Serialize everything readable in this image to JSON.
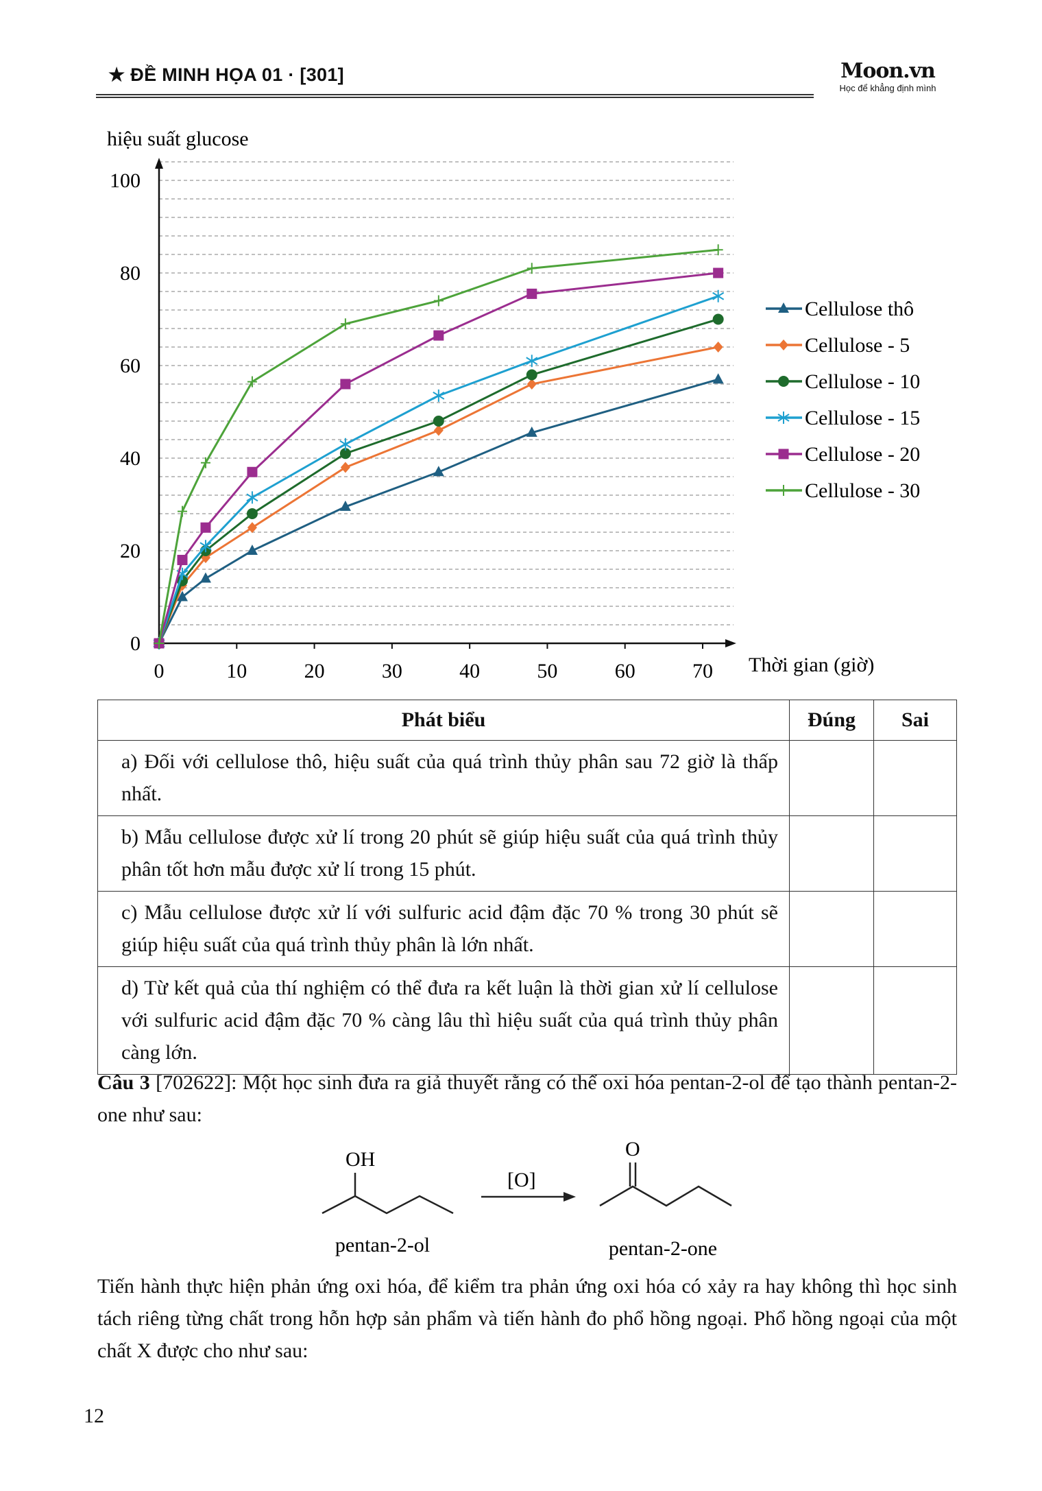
{
  "header": {
    "title": "★ ĐỀ MINH HỌA 01 · [301]",
    "logo_brand": "Moon.vn",
    "logo_tagline": "Học để khẳng định mình"
  },
  "chart_data": {
    "type": "line",
    "ylabel": "hiệu suất glucose",
    "xlabel": "Thời gian (giờ)",
    "xlim": [
      0,
      72
    ],
    "ylim": [
      0,
      104
    ],
    "x_ticks": [
      0,
      10,
      20,
      30,
      40,
      50,
      60,
      70
    ],
    "y_ticks": [
      0,
      20,
      40,
      60,
      80,
      100
    ],
    "grid": "horizontal dashed every 4",
    "legend_placement": "right",
    "x": [
      0,
      3,
      6,
      12,
      24,
      36,
      48,
      72
    ],
    "series": [
      {
        "name": "Cellulose thô",
        "color": "#1f5f82",
        "marker": "triangle",
        "values": [
          0,
          10,
          14,
          20,
          29.5,
          37,
          45.5,
          57
        ]
      },
      {
        "name": "Cellulose - 5",
        "color": "#ec7535",
        "marker": "diamond",
        "values": [
          0,
          12.5,
          18.5,
          25,
          38,
          46,
          56,
          64
        ]
      },
      {
        "name": "Cellulose - 10",
        "color": "#1e6b2c",
        "marker": "circle",
        "values": [
          0,
          13.5,
          20,
          28,
          41,
          48,
          58,
          70
        ]
      },
      {
        "name": "Cellulose - 15",
        "color": "#1ea0d0",
        "marker": "asterisk",
        "values": [
          0,
          15,
          21,
          31.5,
          43,
          53.5,
          61,
          75
        ]
      },
      {
        "name": "Cellulose - 20",
        "color": "#9b2d8f",
        "marker": "square",
        "values": [
          0,
          18,
          25,
          37,
          56,
          66.5,
          75.5,
          80
        ]
      },
      {
        "name": "Cellulose - 30",
        "color": "#4da33a",
        "marker": "plus",
        "values": [
          0,
          28.5,
          39,
          56.5,
          69,
          74,
          81,
          85
        ]
      }
    ]
  },
  "table": {
    "headers": [
      "Phát biểu",
      "Đúng",
      "Sai"
    ],
    "rows": [
      "a) Đối với cellulose thô, hiệu suất của quá trình thủy phân sau 72 giờ là thấp nhất.",
      "b) Mẫu cellulose được xử lí trong 20 phút sẽ giúp hiệu suất của quá trình thủy phân tốt hơn mẫu được xử lí trong 15 phút.",
      "c) Mẫu cellulose được xử lí với sulfuric acid đậm đặc 70 % trong 30 phút sẽ giúp hiệu suất của quá trình thủy phân là lớn nhất.",
      "d) Từ kết quả của thí nghiệm có thể đưa ra kết luận là thời gian xử lí cellulose với sulfuric acid đậm đặc 70 % càng lâu thì hiệu suất của quá trình thủy phân càng lớn."
    ]
  },
  "question3": {
    "label": "Câu 3",
    "id": " [702622]",
    "text": ": Một học sinh đưa ra giả thuyết rằng có thể oxi hóa pentan-2-ol để tạo thành pentan-2-one như sau:"
  },
  "reaction": {
    "oh": "OH",
    "reagent": "[O]",
    "o": "O",
    "reactant": "pentan-2-ol",
    "product": "pentan-2-one"
  },
  "paragraph": "Tiến hành thực hiện phản ứng oxi hóa, để kiểm tra phản ứng oxi hóa có xảy ra hay không thì học sinh tách riêng từng chất trong hỗn hợp sản phẩm và tiến hành đo phổ hồng ngoại. Phổ hồng ngoại của một chất X được cho như sau:",
  "page_number": "12"
}
